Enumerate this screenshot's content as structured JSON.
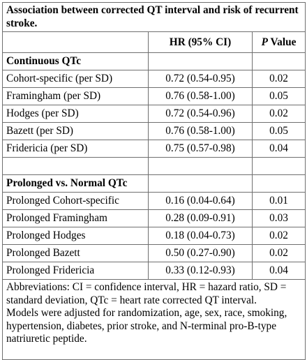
{
  "caption": "Association between corrected QT interval and risk of recurrent stroke.",
  "columns": {
    "hr": "HR (95% CI)",
    "p_italic": "P",
    "p_rest": " Value"
  },
  "sections": [
    {
      "title": "Continuous QTc",
      "rows": [
        {
          "label": "Cohort-specific (per SD)",
          "hr": "0.72 (0.54-0.95)",
          "p": "0.02"
        },
        {
          "label": "Framingham (per SD)",
          "hr": "0.76 (0.58-1.00)",
          "p": "0.05"
        },
        {
          "label": "Hodges (per SD)",
          "hr": "0.72 (0.54-0.96)",
          "p": "0.02"
        },
        {
          "label": "Bazett (per SD)",
          "hr": "0.76 (0.58-1.00)",
          "p": "0.05"
        },
        {
          "label": "Fridericia (per SD)",
          "hr": "0.75 (0.57-0.98)",
          "p": "0.04"
        }
      ]
    },
    {
      "title": "Prolonged vs. Normal QTc",
      "rows": [
        {
          "label": "Prolonged Cohort-specific",
          "hr": "0.16 (0.04-0.64)",
          "p": "0.01"
        },
        {
          "label": "Prolonged Framingham",
          "hr": "0.28 (0.09-0.91)",
          "p": "0.03"
        },
        {
          "label": "Prolonged Hodges",
          "hr": "0.18 (0.04-0.73)",
          "p": "0.02"
        },
        {
          "label": "Prolonged Bazett",
          "hr": "0.50 (0.27-0.90)",
          "p": "0.02"
        },
        {
          "label": "Prolonged Fridericia",
          "hr": "0.33 (0.12-0.93)",
          "p": "0.04"
        }
      ]
    }
  ],
  "notes": [
    "Abbreviations: CI = confidence interval, HR = hazard ratio, SD = standard deviation, QTc = heart rate corrected QT interval.",
    "Models were adjusted for randomization, age, sex, race, smoking, hypertension, diabetes, prior stroke, and N-terminal pro-B-type natriuretic peptide."
  ]
}
